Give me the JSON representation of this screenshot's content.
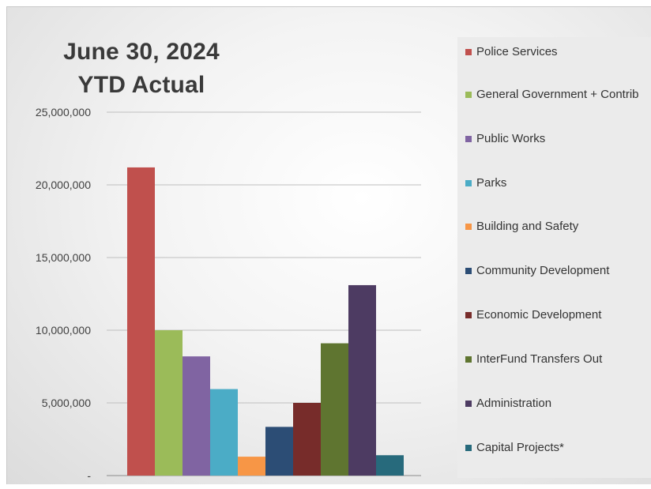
{
  "title_line1": "June 30, 2024",
  "title_line2": "YTD Actual",
  "chart_data": {
    "type": "bar",
    "title": "June 30, 2024 YTD Actual",
    "ylim": [
      0,
      25000000
    ],
    "yticks": [
      {
        "value": 0,
        "label": "-"
      },
      {
        "value": 5000000,
        "label": "5,000,000"
      },
      {
        "value": 10000000,
        "label": "10,000,000"
      },
      {
        "value": 15000000,
        "label": "15,000,000"
      },
      {
        "value": 20000000,
        "label": "20,000,000"
      },
      {
        "value": 25000000,
        "label": "25,000,000"
      }
    ],
    "grid": true,
    "legend_position": "right",
    "series": [
      {
        "name": "Police Services",
        "value": 21200000,
        "color": "#c0504d"
      },
      {
        "name": "General Government + Contrib",
        "value": 10000000,
        "color": "#9bbb59"
      },
      {
        "name": "Public Works",
        "value": 8200000,
        "color": "#8064a2"
      },
      {
        "name": "Parks",
        "value": 5950000,
        "color": "#4bacc6"
      },
      {
        "name": "Building and Safety",
        "value": 1300000,
        "color": "#f79646"
      },
      {
        "name": "Community Development",
        "value": 3350000,
        "color": "#2c4d75"
      },
      {
        "name": "Economic Development",
        "value": 5000000,
        "color": "#772c2a"
      },
      {
        "name": "InterFund Transfers Out",
        "value": 9100000,
        "color": "#5f7530"
      },
      {
        "name": "Administration",
        "value": 13100000,
        "color": "#4d3b62"
      },
      {
        "name": "Capital Projects*",
        "value": 1400000,
        "color": "#276a7c"
      }
    ]
  }
}
